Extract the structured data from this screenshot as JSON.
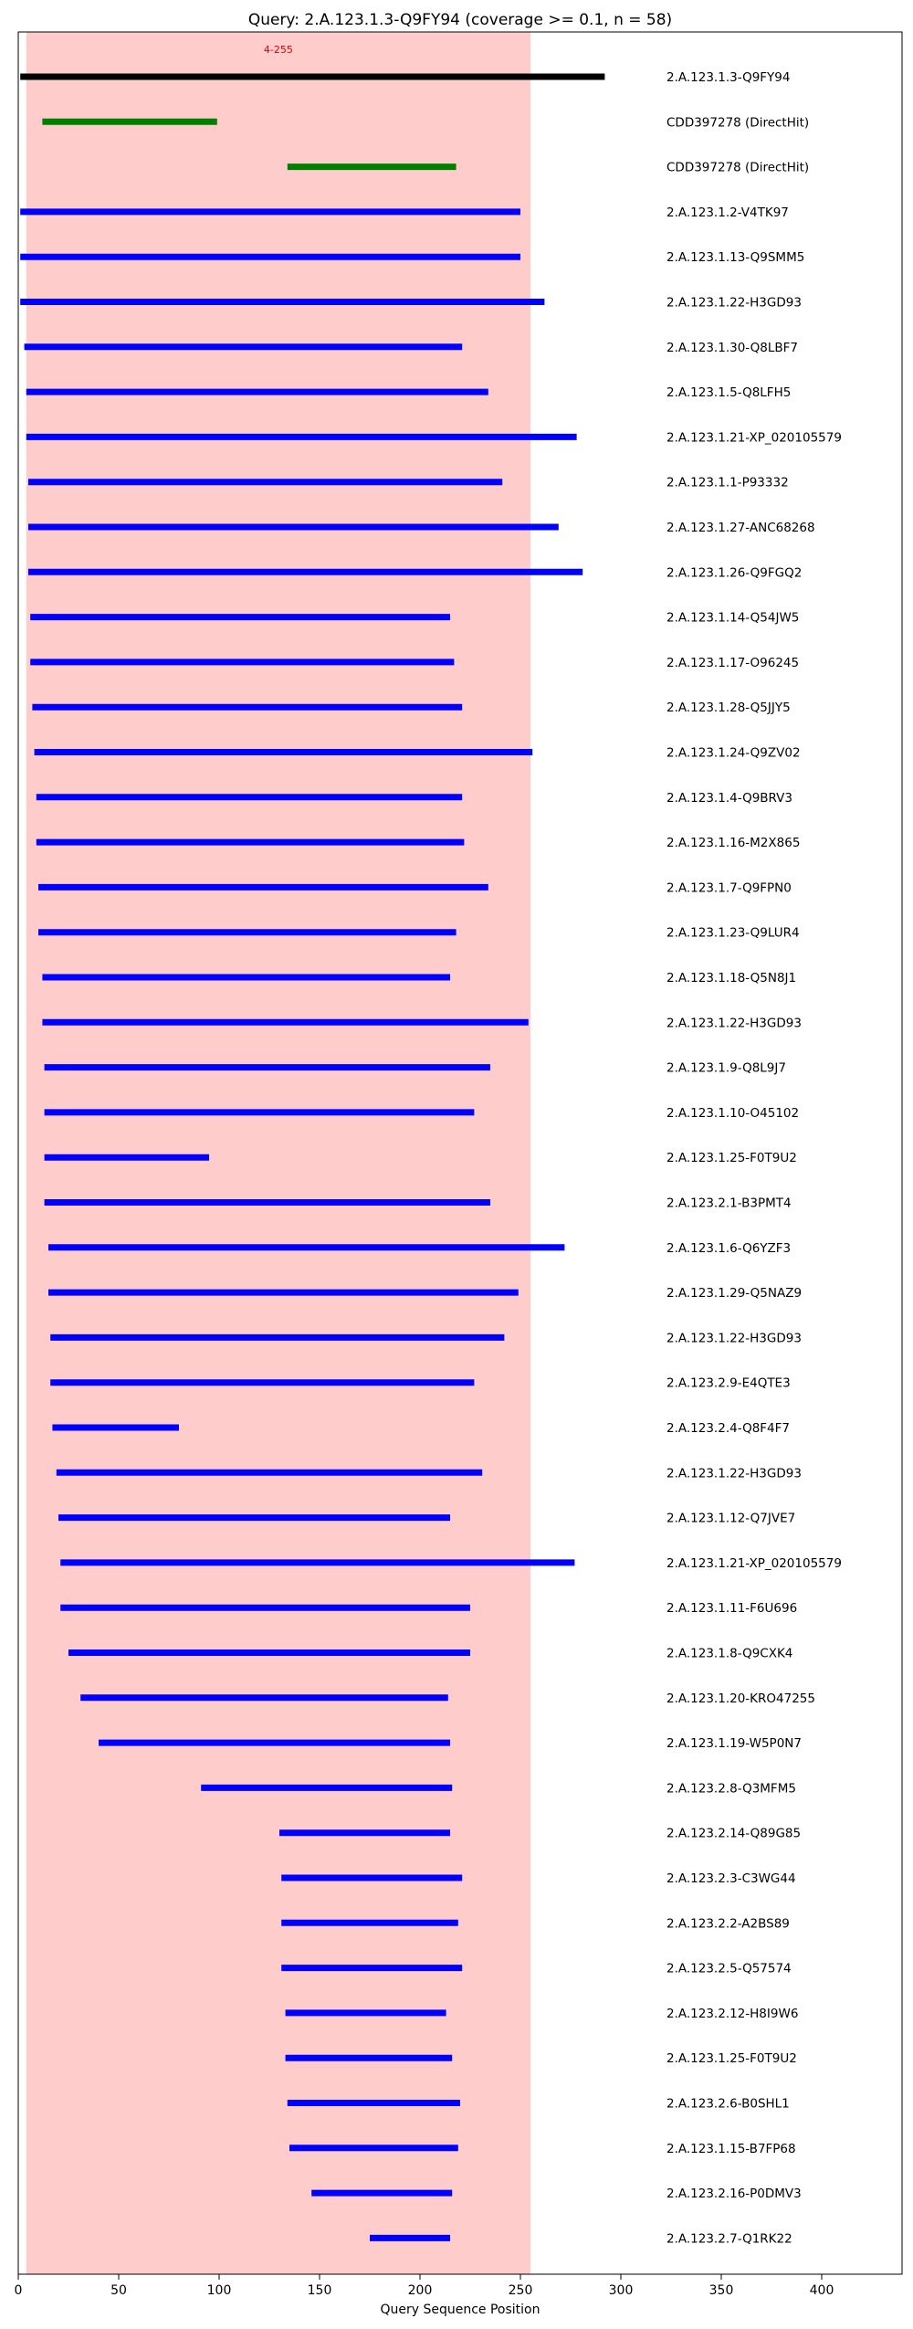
{
  "chart_data": {
    "type": "bar",
    "subtype": "horizontal-range-segments",
    "title": "Query: 2.A.123.1.3-Q9FY94 (coverage >= 0.1, n = 58)",
    "xlabel": "Query Sequence Position",
    "ylabel": "",
    "xlim": [
      0,
      440
    ],
    "xticks": [
      0,
      50,
      100,
      150,
      200,
      250,
      300,
      350,
      400
    ],
    "grid": false,
    "highlight_region": {
      "start": 4,
      "end": 255,
      "label": "4-255",
      "color": "#ffcccc"
    },
    "series_colors": {
      "query": "#000000",
      "domain": "#008000",
      "hit": "#0000ff"
    },
    "segments": [
      {
        "label": "2.A.123.1.3-Q9FY94",
        "start": 1,
        "end": 292,
        "kind": "query"
      },
      {
        "label": "CDD397278 (DirectHit)",
        "start": 12,
        "end": 99,
        "kind": "domain"
      },
      {
        "label": "CDD397278 (DirectHit)",
        "start": 134,
        "end": 218,
        "kind": "domain"
      },
      {
        "label": "2.A.123.1.2-V4TK97",
        "start": 1,
        "end": 250,
        "kind": "hit"
      },
      {
        "label": "2.A.123.1.13-Q9SMM5",
        "start": 1,
        "end": 250,
        "kind": "hit"
      },
      {
        "label": "2.A.123.1.22-H3GD93",
        "start": 1,
        "end": 262,
        "kind": "hit"
      },
      {
        "label": "2.A.123.1.30-Q8LBF7",
        "start": 3,
        "end": 221,
        "kind": "hit"
      },
      {
        "label": "2.A.123.1.5-Q8LFH5",
        "start": 4,
        "end": 234,
        "kind": "hit"
      },
      {
        "label": "2.A.123.1.21-XP_020105579",
        "start": 4,
        "end": 278,
        "kind": "hit"
      },
      {
        "label": "2.A.123.1.1-P93332",
        "start": 5,
        "end": 241,
        "kind": "hit"
      },
      {
        "label": "2.A.123.1.27-ANC68268",
        "start": 5,
        "end": 269,
        "kind": "hit"
      },
      {
        "label": "2.A.123.1.26-Q9FGQ2",
        "start": 5,
        "end": 281,
        "kind": "hit"
      },
      {
        "label": "2.A.123.1.14-Q54JW5",
        "start": 6,
        "end": 215,
        "kind": "hit"
      },
      {
        "label": "2.A.123.1.17-O96245",
        "start": 6,
        "end": 217,
        "kind": "hit"
      },
      {
        "label": "2.A.123.1.28-Q5JJY5",
        "start": 7,
        "end": 221,
        "kind": "hit"
      },
      {
        "label": "2.A.123.1.24-Q9ZV02",
        "start": 8,
        "end": 256,
        "kind": "hit"
      },
      {
        "label": "2.A.123.1.4-Q9BRV3",
        "start": 9,
        "end": 221,
        "kind": "hit"
      },
      {
        "label": "2.A.123.1.16-M2X865",
        "start": 9,
        "end": 222,
        "kind": "hit"
      },
      {
        "label": "2.A.123.1.7-Q9FPN0",
        "start": 10,
        "end": 234,
        "kind": "hit"
      },
      {
        "label": "2.A.123.1.23-Q9LUR4",
        "start": 10,
        "end": 218,
        "kind": "hit"
      },
      {
        "label": "2.A.123.1.18-Q5N8J1",
        "start": 12,
        "end": 215,
        "kind": "hit"
      },
      {
        "label": "2.A.123.1.22-H3GD93",
        "start": 12,
        "end": 254,
        "kind": "hit"
      },
      {
        "label": "2.A.123.1.9-Q8L9J7",
        "start": 13,
        "end": 235,
        "kind": "hit"
      },
      {
        "label": "2.A.123.1.10-O45102",
        "start": 13,
        "end": 227,
        "kind": "hit"
      },
      {
        "label": "2.A.123.1.25-F0T9U2",
        "start": 13,
        "end": 95,
        "kind": "hit"
      },
      {
        "label": "2.A.123.2.1-B3PMT4",
        "start": 13,
        "end": 235,
        "kind": "hit"
      },
      {
        "label": "2.A.123.1.6-Q6YZF3",
        "start": 15,
        "end": 272,
        "kind": "hit"
      },
      {
        "label": "2.A.123.1.29-Q5NAZ9",
        "start": 15,
        "end": 249,
        "kind": "hit"
      },
      {
        "label": "2.A.123.1.22-H3GD93",
        "start": 16,
        "end": 242,
        "kind": "hit"
      },
      {
        "label": "2.A.123.2.9-E4QTE3",
        "start": 16,
        "end": 227,
        "kind": "hit"
      },
      {
        "label": "2.A.123.2.4-Q8F4F7",
        "start": 17,
        "end": 80,
        "kind": "hit"
      },
      {
        "label": "2.A.123.1.22-H3GD93",
        "start": 19,
        "end": 231,
        "kind": "hit"
      },
      {
        "label": "2.A.123.1.12-Q7JVE7",
        "start": 20,
        "end": 215,
        "kind": "hit"
      },
      {
        "label": "2.A.123.1.21-XP_020105579",
        "start": 21,
        "end": 277,
        "kind": "hit"
      },
      {
        "label": "2.A.123.1.11-F6U696",
        "start": 21,
        "end": 225,
        "kind": "hit"
      },
      {
        "label": "2.A.123.1.8-Q9CXK4",
        "start": 25,
        "end": 225,
        "kind": "hit"
      },
      {
        "label": "2.A.123.1.20-KRO47255",
        "start": 31,
        "end": 214,
        "kind": "hit"
      },
      {
        "label": "2.A.123.1.19-W5P0N7",
        "start": 40,
        "end": 215,
        "kind": "hit"
      },
      {
        "label": "2.A.123.2.8-Q3MFM5",
        "start": 91,
        "end": 216,
        "kind": "hit"
      },
      {
        "label": "2.A.123.2.14-Q89G85",
        "start": 130,
        "end": 215,
        "kind": "hit"
      },
      {
        "label": "2.A.123.2.3-C3WG44",
        "start": 131,
        "end": 221,
        "kind": "hit"
      },
      {
        "label": "2.A.123.2.2-A2BS89",
        "start": 131,
        "end": 219,
        "kind": "hit"
      },
      {
        "label": "2.A.123.2.5-Q57574",
        "start": 131,
        "end": 221,
        "kind": "hit"
      },
      {
        "label": "2.A.123.2.12-H8I9W6",
        "start": 133,
        "end": 213,
        "kind": "hit"
      },
      {
        "label": "2.A.123.1.25-F0T9U2",
        "start": 133,
        "end": 216,
        "kind": "hit"
      },
      {
        "label": "2.A.123.2.6-B0SHL1",
        "start": 134,
        "end": 220,
        "kind": "hit"
      },
      {
        "label": "2.A.123.1.15-B7FP68",
        "start": 135,
        "end": 219,
        "kind": "hit"
      },
      {
        "label": "2.A.123.2.16-P0DMV3",
        "start": 146,
        "end": 216,
        "kind": "hit"
      },
      {
        "label": "2.A.123.2.7-Q1RK22",
        "start": 175,
        "end": 215,
        "kind": "hit"
      }
    ]
  }
}
